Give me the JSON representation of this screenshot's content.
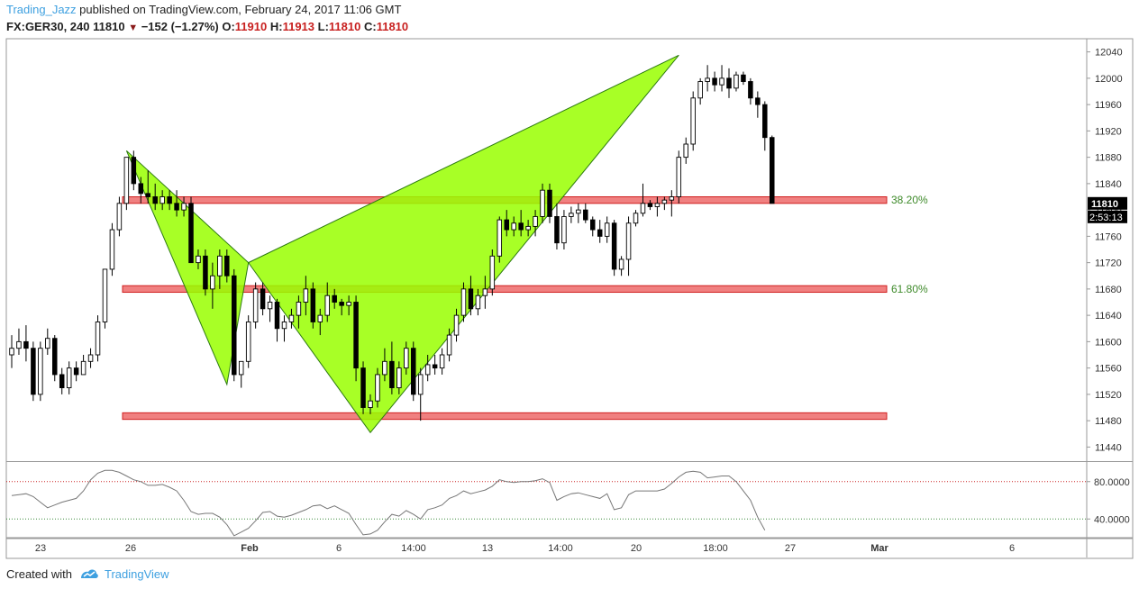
{
  "header": {
    "author": "Trading_Jazz",
    "published_text": " published on TradingView.com, February 24, 2017 11:06 GMT",
    "symbol": "FX:GER30, 240",
    "last": "11810",
    "change": "−152 (−1.27%)",
    "o_label": "O:",
    "o_value": "11910",
    "h_label": "H:",
    "h_value": "11913",
    "l_label": "L:",
    "l_value": "11810",
    "c_label": "C:",
    "c_value": "11810"
  },
  "footer": {
    "created_with": "Created with",
    "brand": "TradingView"
  },
  "colors": {
    "pattern_fill": "#99ff00",
    "zone_fill": "#f08080",
    "fib_text": "#3e8a2a",
    "bull": "#ffffff",
    "bear": "#000000"
  },
  "chart_data": {
    "type": "candlestick",
    "symbol": "FX:GER30",
    "timeframe": "240",
    "ylim": [
      11420,
      12060
    ],
    "y_ticks": [
      11440,
      11480,
      11520,
      11560,
      11600,
      11640,
      11680,
      11720,
      11760,
      11800,
      11840,
      11880,
      11920,
      11960,
      12000,
      12040
    ],
    "x_tick_labels": [
      "23",
      "26",
      "Feb",
      "6",
      "14:00",
      "13",
      "14:00",
      "20",
      "18:00",
      "27",
      "Mar",
      "6"
    ],
    "last_price_label": "11810",
    "countdown_label": "2:53:13",
    "candles": [
      [
        11580,
        11610,
        11560,
        11590
      ],
      [
        11590,
        11620,
        11580,
        11600
      ],
      [
        11600,
        11625,
        11570,
        11590
      ],
      [
        11590,
        11600,
        11510,
        11520
      ],
      [
        11520,
        11600,
        11510,
        11590
      ],
      [
        11590,
        11620,
        11580,
        11605
      ],
      [
        11605,
        11610,
        11540,
        11550
      ],
      [
        11550,
        11560,
        11520,
        11530
      ],
      [
        11530,
        11570,
        11520,
        11560
      ],
      [
        11560,
        11570,
        11540,
        11550
      ],
      [
        11550,
        11580,
        11550,
        11570
      ],
      [
        11570,
        11590,
        11560,
        11580
      ],
      [
        11580,
        11640,
        11570,
        11630
      ],
      [
        11630,
        11710,
        11620,
        11710
      ],
      [
        11710,
        11780,
        11700,
        11770
      ],
      [
        11770,
        11820,
        11760,
        11810
      ],
      [
        11810,
        11880,
        11800,
        11880
      ],
      [
        11880,
        11890,
        11830,
        11840
      ],
      [
        11840,
        11850,
        11810,
        11825
      ],
      [
        11825,
        11860,
        11810,
        11820
      ],
      [
        11820,
        11840,
        11800,
        11810
      ],
      [
        11810,
        11830,
        11800,
        11820
      ],
      [
        11820,
        11830,
        11800,
        11810
      ],
      [
        11810,
        11830,
        11790,
        11800
      ],
      [
        11800,
        11820,
        11790,
        11810
      ],
      [
        11810,
        11820,
        11720,
        11720
      ],
      [
        11720,
        11740,
        11710,
        11730
      ],
      [
        11730,
        11740,
        11670,
        11680
      ],
      [
        11680,
        11720,
        11650,
        11700
      ],
      [
        11700,
        11740,
        11680,
        11730
      ],
      [
        11730,
        11740,
        11690,
        11700
      ],
      [
        11700,
        11710,
        11540,
        11550
      ],
      [
        11550,
        11570,
        11530,
        11570
      ],
      [
        11570,
        11640,
        11560,
        11630
      ],
      [
        11630,
        11690,
        11620,
        11680
      ],
      [
        11680,
        11690,
        11640,
        11650
      ],
      [
        11650,
        11670,
        11630,
        11660
      ],
      [
        11660,
        11665,
        11600,
        11620
      ],
      [
        11620,
        11640,
        11600,
        11630
      ],
      [
        11630,
        11650,
        11620,
        11640
      ],
      [
        11640,
        11670,
        11620,
        11660
      ],
      [
        11660,
        11700,
        11640,
        11680
      ],
      [
        11680,
        11690,
        11620,
        11630
      ],
      [
        11630,
        11650,
        11610,
        11640
      ],
      [
        11640,
        11690,
        11630,
        11670
      ],
      [
        11670,
        11680,
        11650,
        11660
      ],
      [
        11660,
        11665,
        11640,
        11655
      ],
      [
        11655,
        11670,
        11640,
        11660
      ],
      [
        11660,
        11670,
        11540,
        11560
      ],
      [
        11560,
        11570,
        11490,
        11500
      ],
      [
        11500,
        11520,
        11490,
        11510
      ],
      [
        11510,
        11560,
        11500,
        11550
      ],
      [
        11550,
        11590,
        11540,
        11570
      ],
      [
        11570,
        11600,
        11520,
        11530
      ],
      [
        11530,
        11570,
        11520,
        11560
      ],
      [
        11560,
        11600,
        11550,
        11590
      ],
      [
        11590,
        11600,
        11510,
        11520
      ],
      [
        11520,
        11560,
        11480,
        11550
      ],
      [
        11550,
        11580,
        11540,
        11565
      ],
      [
        11565,
        11580,
        11550,
        11560
      ],
      [
        11560,
        11590,
        11550,
        11580
      ],
      [
        11580,
        11620,
        11570,
        11610
      ],
      [
        11610,
        11650,
        11600,
        11640
      ],
      [
        11640,
        11690,
        11630,
        11680
      ],
      [
        11680,
        11700,
        11640,
        11650
      ],
      [
        11650,
        11680,
        11640,
        11670
      ],
      [
        11670,
        11700,
        11650,
        11680
      ],
      [
        11680,
        11740,
        11670,
        11730
      ],
      [
        11730,
        11790,
        11720,
        11785
      ],
      [
        11785,
        11800,
        11760,
        11770
      ],
      [
        11770,
        11790,
        11760,
        11780
      ],
      [
        11780,
        11800,
        11760,
        11770
      ],
      [
        11770,
        11785,
        11760,
        11775
      ],
      [
        11775,
        11800,
        11760,
        11790
      ],
      [
        11790,
        11840,
        11780,
        11830
      ],
      [
        11830,
        11840,
        11780,
        11790
      ],
      [
        11790,
        11810,
        11740,
        11750
      ],
      [
        11750,
        11800,
        11740,
        11790
      ],
      [
        11790,
        11805,
        11780,
        11795
      ],
      [
        11795,
        11810,
        11780,
        11800
      ],
      [
        11800,
        11810,
        11780,
        11785
      ],
      [
        11785,
        11790,
        11760,
        11770
      ],
      [
        11770,
        11785,
        11750,
        11760
      ],
      [
        11760,
        11790,
        11750,
        11780
      ],
      [
        11780,
        11785,
        11700,
        11710
      ],
      [
        11710,
        11730,
        11700,
        11725
      ],
      [
        11725,
        11790,
        11700,
        11780
      ],
      [
        11780,
        11800,
        11775,
        11795
      ],
      [
        11795,
        11840,
        11790,
        11810
      ],
      [
        11810,
        11815,
        11800,
        11805
      ],
      [
        11805,
        11820,
        11790,
        11810
      ],
      [
        11810,
        11820,
        11800,
        11815
      ],
      [
        11815,
        11830,
        11790,
        11820
      ],
      [
        11820,
        11890,
        11810,
        11880
      ],
      [
        11880,
        11910,
        11870,
        11900
      ],
      [
        11900,
        11980,
        11890,
        11970
      ],
      [
        11970,
        12000,
        11960,
        11995
      ],
      [
        11995,
        12020,
        11980,
        12000
      ],
      [
        12000,
        12010,
        11980,
        11990
      ],
      [
        11990,
        12020,
        11980,
        12000
      ],
      [
        12000,
        12015,
        11970,
        11985
      ],
      [
        11985,
        12010,
        11980,
        12005
      ],
      [
        12005,
        12010,
        11990,
        11995
      ],
      [
        11995,
        12000,
        11960,
        11970
      ],
      [
        11970,
        11980,
        11940,
        11960
      ],
      [
        11960,
        11965,
        11890,
        11910
      ],
      [
        11910,
        11913,
        11810,
        11810
      ]
    ],
    "rsi": {
      "levels": [
        80,
        40
      ],
      "y_tick_labels": [
        "80.0000",
        "40.0000"
      ],
      "ylim": [
        20,
        100
      ],
      "values": [
        65,
        66,
        67,
        64,
        58,
        52,
        55,
        58,
        60,
        62,
        70,
        82,
        89,
        92,
        92,
        90,
        86,
        82,
        80,
        76,
        76,
        77,
        74,
        70,
        60,
        48,
        45,
        46,
        46,
        42,
        34,
        22,
        26,
        30,
        38,
        47,
        48,
        43,
        42,
        44,
        47,
        50,
        54,
        55,
        51,
        54,
        50,
        46,
        34,
        23,
        24,
        28,
        37,
        45,
        43,
        49,
        45,
        40,
        50,
        52,
        55,
        62,
        65,
        70,
        67,
        69,
        71,
        75,
        82,
        80,
        79,
        80,
        80,
        81,
        83,
        79,
        60,
        64,
        67,
        68,
        66,
        64,
        62,
        67,
        50,
        52,
        66,
        70,
        70,
        70,
        70,
        72,
        78,
        85,
        90,
        91,
        90,
        84,
        85,
        86,
        86,
        80,
        70,
        60,
        42,
        28
      ]
    },
    "fib_levels": [
      {
        "label": "38.20%",
        "low": 11810,
        "high": 11820
      },
      {
        "label": "61.80%",
        "low": 11675,
        "high": 11685
      }
    ],
    "support_zone": {
      "low": 11482,
      "high": 11492
    },
    "pattern_points": [
      {
        "x_index": 16,
        "y": 11890
      },
      {
        "x_index": 30,
        "y": 11535
      },
      {
        "x_index": 33,
        "y": 11720
      },
      {
        "x_index": 50,
        "y": 11462
      },
      {
        "x_index": 93,
        "y": 12035
      }
    ]
  }
}
